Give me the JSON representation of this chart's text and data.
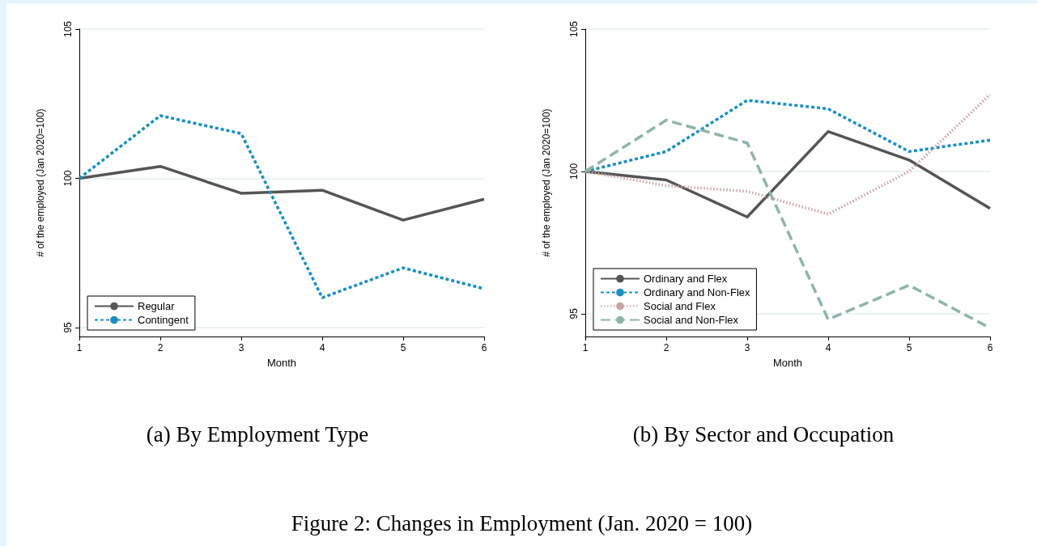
{
  "chart_data": [
    {
      "type": "line",
      "title": "(a) By Employment Type",
      "xlabel": "Month",
      "ylabel": "# of the employed (Jan 2020=100)",
      "x": [
        1,
        2,
        3,
        4,
        5,
        6
      ],
      "xlim": [
        1,
        6
      ],
      "xticks": [
        1,
        2,
        3,
        4,
        5,
        6
      ],
      "ylim": [
        94.7,
        105
      ],
      "yticks": [
        95,
        100,
        105
      ],
      "grid": "y",
      "legend": "bottom left",
      "marker": "none",
      "series": [
        {
          "name": "Regular",
          "color": "#555555",
          "line_style": "solid",
          "values": [
            100,
            100.4,
            99.5,
            99.6,
            98.6,
            99.3
          ]
        },
        {
          "name": "Contingent",
          "color": "#1a8fbf",
          "line_style": "dashed",
          "values": [
            100,
            102.1,
            101.5,
            96.0,
            97.0,
            96.3
          ]
        }
      ],
      "annotations": [
        "Figure 2: Changes in Employment (Jan. 2020 = 100)"
      ]
    },
    {
      "type": "line",
      "title": "(b) By Sector and Occupation",
      "xlabel": "Month",
      "ylabel": "# of the employed (Jan 2020=100)",
      "x": [
        1,
        2,
        3,
        4,
        5,
        6
      ],
      "xlim": [
        1,
        6
      ],
      "xticks": [
        1,
        2,
        3,
        4,
        5,
        6
      ],
      "ylim": [
        94.2,
        105
      ],
      "yticks": [
        95,
        100,
        105
      ],
      "grid": "y",
      "legend": "bottom left",
      "marker": "none",
      "series": [
        {
          "name": "Ordinary and Flex",
          "color": "#555555",
          "line_style": "solid",
          "values": [
            100,
            99.7,
            98.4,
            101.4,
            100.4,
            98.7
          ]
        },
        {
          "name": "Ordinary and Non-Flex",
          "color": "#1a8fbf",
          "line_style": "dashed",
          "values": [
            100,
            100.7,
            102.5,
            102.2,
            100.7,
            101.1
          ]
        },
        {
          "name": "Social and Flex",
          "color": "#c9a3a3",
          "line_style": "dotted",
          "values": [
            100,
            99.5,
            99.3,
            98.5,
            100.0,
            102.7
          ]
        },
        {
          "name": "Social and Non-Flex",
          "color": "#8fb3aa",
          "line_style": "longdash",
          "values": [
            100,
            101.8,
            101.0,
            94.8,
            96.0,
            94.5
          ]
        }
      ]
    }
  ]
}
